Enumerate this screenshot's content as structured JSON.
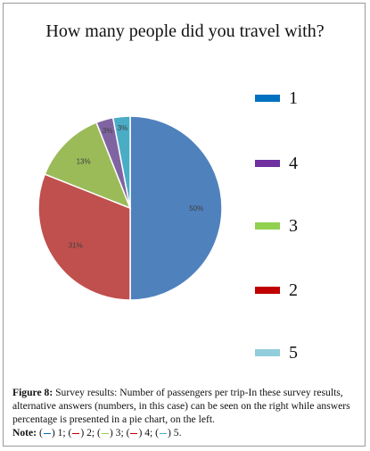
{
  "chart_data": {
    "type": "pie",
    "title": "How many people did you travel with?",
    "slices": [
      {
        "name": "1",
        "value": 50,
        "label": "50%",
        "color": "#4f81bd"
      },
      {
        "name": "2",
        "value": 31,
        "label": "31%",
        "color": "#c0504d"
      },
      {
        "name": "3",
        "value": 13,
        "label": "13%",
        "color": "#9bbb59"
      },
      {
        "name": "4",
        "value": 3,
        "label": "3%",
        "color": "#8064a2"
      },
      {
        "name": "5",
        "value": 3,
        "label": "3%",
        "color": "#4bacc6"
      }
    ],
    "legend": {
      "placement": "right",
      "entries": [
        {
          "label": "1",
          "color": "#0070c0"
        },
        {
          "label": "4",
          "color": "#7030a0"
        },
        {
          "label": "3",
          "color": "#92d050"
        },
        {
          "label": "2",
          "color": "#c00000"
        },
        {
          "label": "5",
          "color": "#92cddc"
        }
      ]
    }
  },
  "caption": {
    "figure_label": "Figure 8:",
    "text": "Survey results: Number of passengers per trip-In these survey results, alternative answers (numbers, in this case) can be seen on the right while answers percentage is presented in a pie chart, on the left.",
    "note_label": "Note:",
    "note_items": [
      {
        "text": "1;",
        "color": "#0070c0"
      },
      {
        "text": "2;",
        "color": "#c00000"
      },
      {
        "text": "3;",
        "color": "#92d050"
      },
      {
        "text": "4;",
        "color": "#c00000"
      },
      {
        "text": "5.",
        "color": "#4bacc6"
      }
    ]
  }
}
